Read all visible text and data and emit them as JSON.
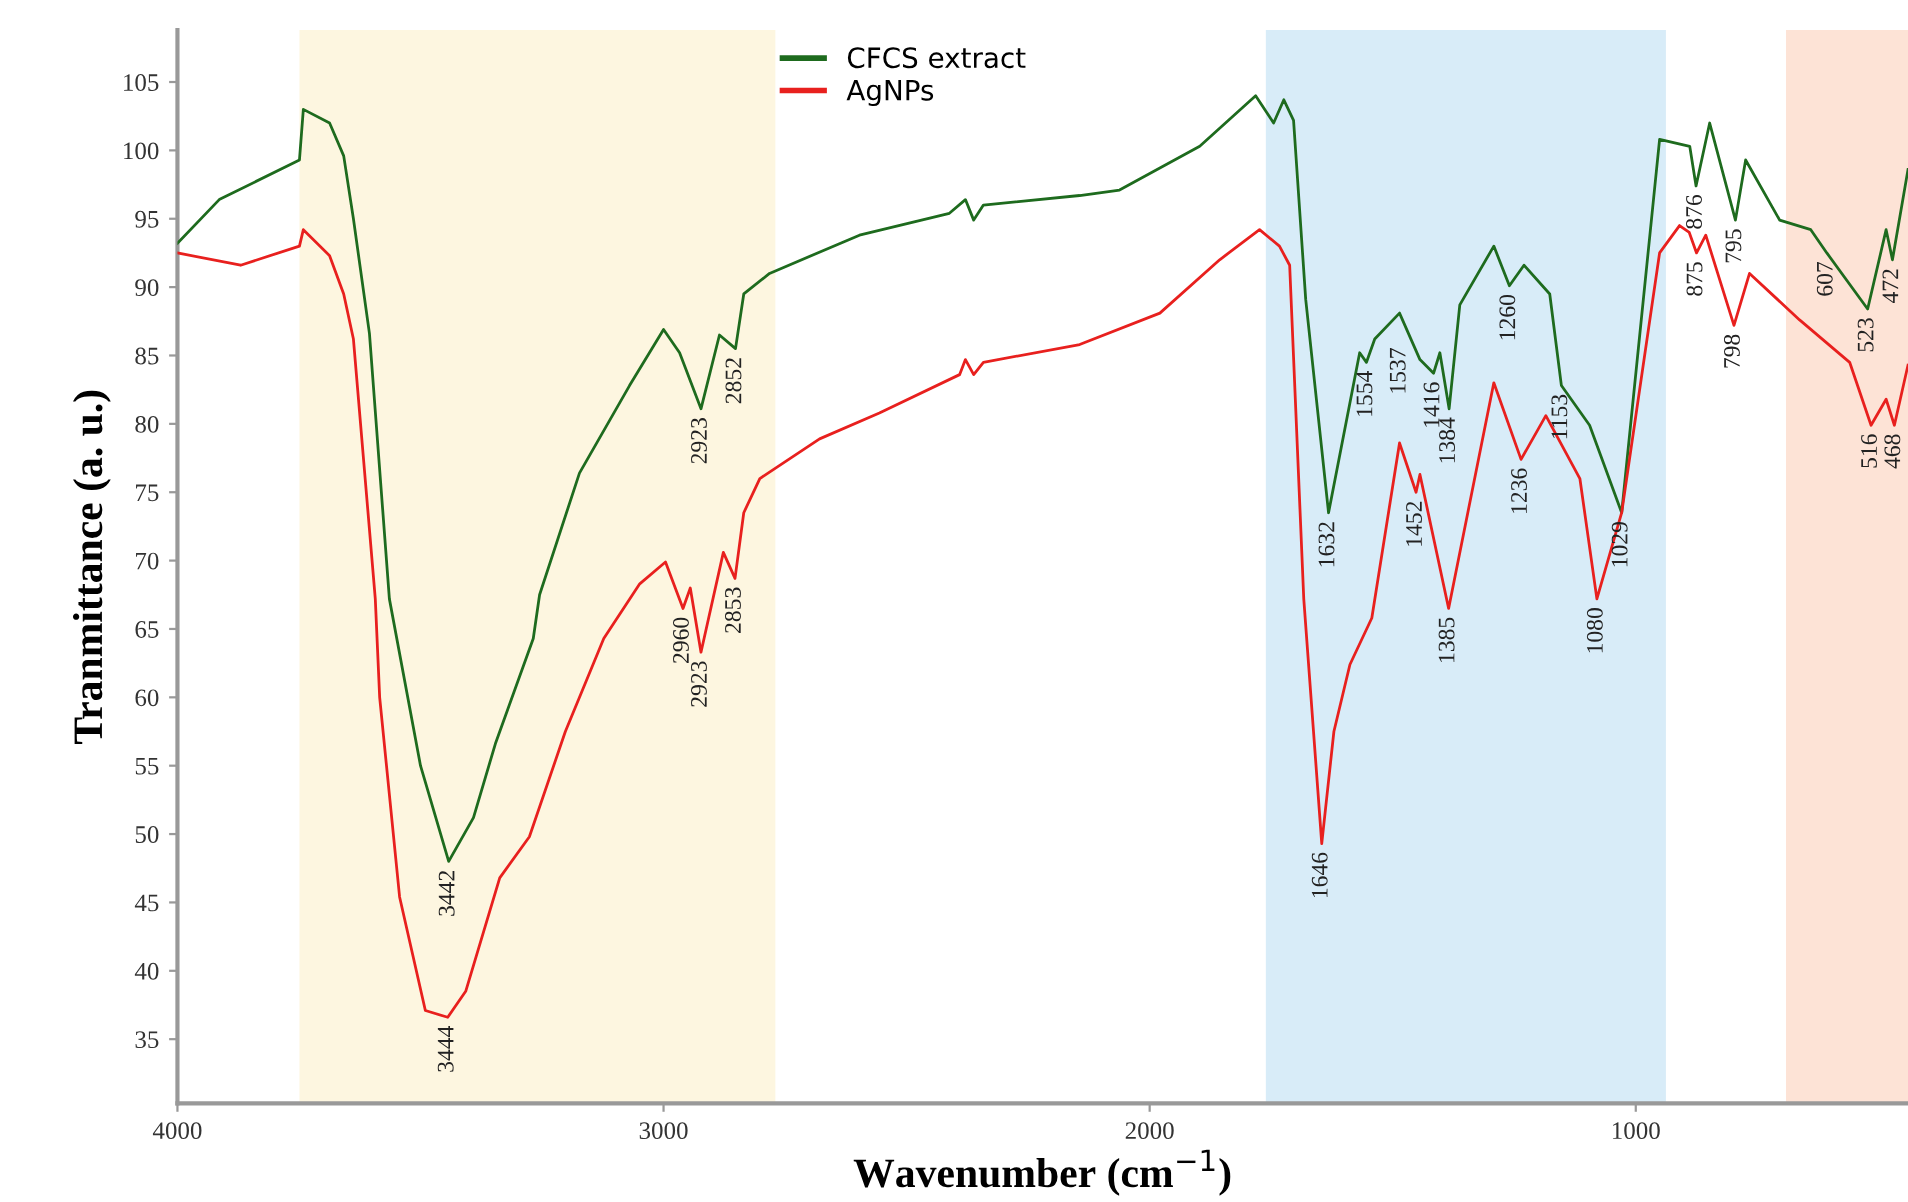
{
  "chart_data": {
    "type": "line",
    "xlabel": "Wavenumber (cm$^{−1}$)",
    "ylabel": "Tranmittance (a. u.)",
    "xlim": [
      4000,
      440
    ],
    "ylim": [
      30.3,
      108.8
    ],
    "xticks": [
      4000,
      3000,
      2000,
      1000
    ],
    "yticks": [
      35,
      40,
      45,
      50,
      55,
      60,
      65,
      70,
      75,
      80,
      85,
      90,
      95,
      100,
      105
    ],
    "grid": false,
    "legend": "top",
    "marker": "none",
    "line_style": "solid",
    "series": [
      {
        "name": "CFCS extract",
        "color": "#1e6b1e",
        "x": [
          4000,
          3914,
          3749,
          3741,
          3687,
          3658,
          3638,
          3605,
          3564,
          3500,
          3442,
          3391,
          3346,
          3268,
          3255,
          3173,
          3070,
          3000,
          2967,
          2923,
          2885,
          2852,
          2835,
          2782,
          2597,
          2412,
          2379,
          2362,
          2342,
          2144,
          2062,
          1897,
          1782,
          1745,
          1724,
          1704,
          1679,
          1632,
          1568,
          1554,
          1537,
          1486,
          1444,
          1416,
          1403,
          1384,
          1362,
          1292,
          1260,
          1230,
          1177,
          1153,
          1095,
          1029,
          951,
          889,
          876,
          848,
          795,
          774,
          704,
          640,
          607,
          523,
          485,
          472,
          440
        ],
        "values": [
          93.2,
          96.4,
          99.3,
          103,
          102,
          99.6,
          95,
          86.6,
          67.2,
          55,
          48,
          51.2,
          56.6,
          64.3,
          67.5,
          76.4,
          82.8,
          86.9,
          85.2,
          81.1,
          86.5,
          85.5,
          89.5,
          91,
          93.8,
          95.4,
          96.4,
          94.9,
          96,
          96.7,
          97.1,
          100.3,
          104,
          102,
          103.7,
          102.2,
          89.1,
          73.5,
          85.2,
          84.5,
          86.2,
          88.1,
          84.7,
          83.7,
          85.2,
          81.1,
          88.7,
          93,
          90.1,
          91.6,
          89.5,
          82.8,
          79.9,
          73.5,
          100.8,
          100.3,
          97.4,
          102,
          94.9,
          99.3,
          94.9,
          94.2,
          92.5,
          88.4,
          94.2,
          92,
          98.6
        ]
      },
      {
        "name": "AgNPs",
        "color": "#e8201e",
        "x": [
          4000,
          3870,
          3749,
          3741,
          3687,
          3658,
          3638,
          3593,
          3584,
          3543,
          3490,
          3444,
          3407,
          3337,
          3276,
          3202,
          3123,
          3049,
          2996,
          2960,
          2945,
          2923,
          2877,
          2853,
          2835,
          2802,
          2679,
          2556,
          2391,
          2379,
          2362,
          2342,
          2144,
          1979,
          1856,
          1774,
          1733,
          1712,
          1683,
          1646,
          1621,
          1588,
          1543,
          1486,
          1452,
          1444,
          1385,
          1292,
          1236,
          1185,
          1115,
          1080,
          1029,
          951,
          910,
          890,
          875,
          856,
          798,
          766,
          663,
          560,
          516,
          485,
          468,
          440
        ],
        "values": [
          92.5,
          91.6,
          93,
          94.2,
          92.3,
          89.5,
          86.2,
          67.2,
          60,
          45.4,
          37.1,
          36.6,
          38.5,
          46.8,
          49.8,
          57.5,
          64.3,
          68.3,
          69.9,
          66.5,
          68,
          63.3,
          70.6,
          68.7,
          73.5,
          76,
          78.9,
          80.8,
          83.6,
          84.7,
          83.6,
          84.5,
          85.8,
          88.1,
          92,
          94.2,
          93,
          91.6,
          67.2,
          49.3,
          57.5,
          62.4,
          65.8,
          78.6,
          75,
          76.3,
          66.5,
          83,
          77.4,
          80.6,
          76,
          67.2,
          73.5,
          92.5,
          94.5,
          94,
          92.5,
          93.8,
          87.2,
          91,
          87.6,
          84.5,
          79.9,
          81.8,
          79.9,
          84.3
        ]
      }
    ],
    "bands": [
      {
        "axis": "x",
        "from": 3749,
        "to": 2770,
        "color": "#fdf6e0"
      },
      {
        "axis": "x",
        "from": 1761,
        "to": 938,
        "color": "#d8ecf8"
      },
      {
        "axis": "x",
        "from": 691,
        "to": 440,
        "color": "#fde3d6"
      }
    ],
    "annotations": [
      {
        "text": "3442",
        "x": 3442,
        "y": 48
      },
      {
        "text": "2923",
        "x": 2923,
        "y": 81.1
      },
      {
        "text": "2852",
        "x": 2852,
        "y": 85.5
      },
      {
        "text": "1632",
        "x": 1632,
        "y": 73.5
      },
      {
        "text": "1554",
        "x": 1554,
        "y": 84.5
      },
      {
        "text": "1537",
        "x": 1537,
        "y": 86.2
      },
      {
        "text": "1416",
        "x": 1416,
        "y": 83.7
      },
      {
        "text": "1384",
        "x": 1384,
        "y": 81.1
      },
      {
        "text": "1260",
        "x": 1260,
        "y": 90.1
      },
      {
        "text": "1153",
        "x": 1153,
        "y": 82.8
      },
      {
        "text": "1029",
        "x": 1029,
        "y": 73.5
      },
      {
        "text": "876",
        "x": 876,
        "y": 97.4
      },
      {
        "text": "795",
        "x": 795,
        "y": 94.9
      },
      {
        "text": "607",
        "x": 607,
        "y": 92.5
      },
      {
        "text": "523",
        "x": 523,
        "y": 88.4
      },
      {
        "text": "472",
        "x": 472,
        "y": 92
      },
      {
        "text": "3444",
        "x": 3444,
        "y": 36.6
      },
      {
        "text": "2960",
        "x": 2960,
        "y": 66.5
      },
      {
        "text": "2923",
        "x": 2923,
        "y": 63.3
      },
      {
        "text": "2853",
        "x": 2853,
        "y": 68.7
      },
      {
        "text": "1646",
        "x": 1646,
        "y": 49.3
      },
      {
        "text": "1452",
        "x": 1452,
        "y": 75
      },
      {
        "text": "1385",
        "x": 1385,
        "y": 66.5
      },
      {
        "text": "1236",
        "x": 1236,
        "y": 77.4
      },
      {
        "text": "1080",
        "x": 1080,
        "y": 67.2
      },
      {
        "text": "875",
        "x": 875,
        "y": 92.5
      },
      {
        "text": "798",
        "x": 798,
        "y": 87.2
      },
      {
        "text": "516",
        "x": 516,
        "y": 79.9
      },
      {
        "text": "468",
        "x": 468,
        "y": 79.9
      }
    ]
  }
}
